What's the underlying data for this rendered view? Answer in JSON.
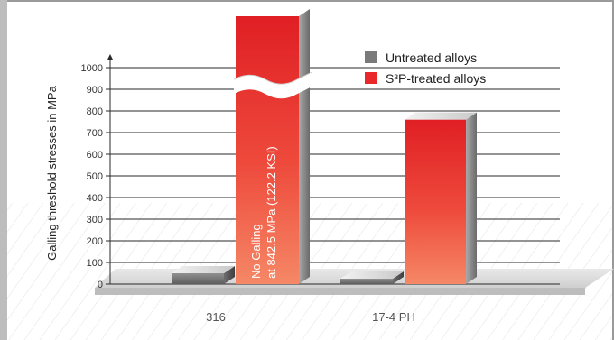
{
  "chart_data": {
    "type": "bar",
    "title": "",
    "xlabel": "",
    "ylabel": "Galling threshold stresses in MPa",
    "ylim": [
      0,
      1000
    ],
    "yticks": [
      0,
      100,
      200,
      300,
      400,
      500,
      600,
      700,
      800,
      900,
      1000
    ],
    "grid": true,
    "legend_position": "top-right",
    "categories": [
      "316",
      "17-4 PH"
    ],
    "series": [
      {
        "name": "Untreated alloys",
        "values": [
          50,
          25
        ],
        "color": "#7a7a7a"
      },
      {
        "name": "S³P-treated alloys",
        "values": [
          1000,
          760
        ],
        "color": "#e8282b"
      }
    ],
    "annotations": [
      {
        "category": "316",
        "series": "S³P-treated alloys",
        "lines": [
          "No Galling",
          "at 842.5 MPa (122.2 KSI)"
        ]
      }
    ],
    "axis_break": {
      "category": "316",
      "series": "S³P-treated alloys",
      "value": 920
    }
  }
}
